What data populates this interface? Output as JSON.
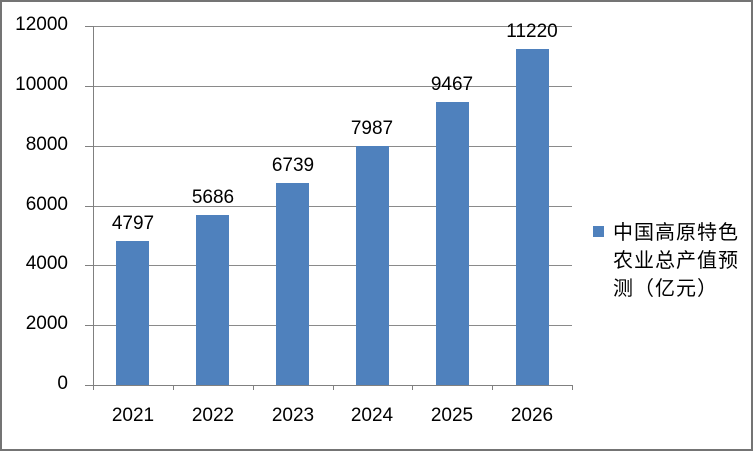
{
  "colors": {
    "bar": "#4F81BD",
    "gridline": "#8A8A8A",
    "axis": "#808080",
    "tick": "#808080",
    "text": "#000000",
    "background": "#FFFFFF",
    "frame_border": "#747474"
  },
  "legend": {
    "label": "中国高原特色农业总产值预测（亿元）",
    "lines": [
      "中国高原特色",
      "农业总产值预",
      "测（亿元）"
    ]
  },
  "chart_data": {
    "type": "bar",
    "title": "",
    "categories": [
      "2021",
      "2022",
      "2023",
      "2024",
      "2025",
      "2026"
    ],
    "series": [
      {
        "name": "中国高原特色农业总产值预测（亿元）",
        "values": [
          4797,
          5686,
          6739,
          7987,
          9467,
          11220
        ]
      }
    ],
    "xlabel": "",
    "ylabel": "",
    "ylim": [
      0,
      12000
    ],
    "y_ticks": [
      0,
      2000,
      4000,
      6000,
      8000,
      10000,
      12000
    ],
    "grid": "horizontal",
    "legend_position": "right",
    "data_labels_visible": true
  }
}
